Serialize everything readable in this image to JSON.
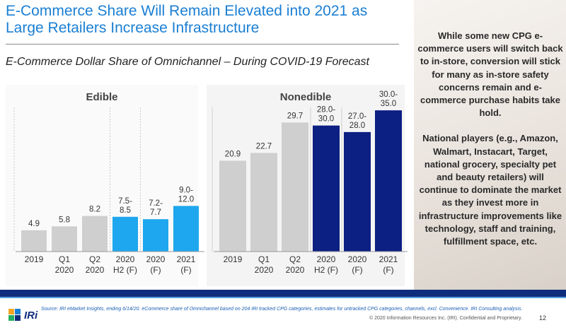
{
  "title": "E-Commerce Share Will Remain Elevated into 2021 as Large Retailers Increase Infrastructure",
  "subtitle": "E-Commerce Dollar Share of Omnichannel – During COVID-19 Forecast",
  "right_panel": {
    "paragraph1": "While some new CPG e-commerce users will switch back to in-store, conversion will stick for many as in-store safety concerns remain and e-commerce purchase habits take hold.",
    "paragraph2": "National players (e.g., Amazon, Walmart, Instacart, Target, national grocery, specialty pet and beauty retailers) will continue to dominate the market as they invest more in infrastructure improvements like technology, staff and training, fulfillment space, etc."
  },
  "footer": {
    "source": "Source: IRI eMarket Insights, ending 6/14/20. eCommerce share of Omnichannel based on 204 IRI tracked CPG categories, estimates for untracked CPG categories, channels, excl. Convenience. IRI Consulting analysis.",
    "copyright": "© 2020 Information Resources Inc. (IRI). Confidential and Proprietary.",
    "page": "12",
    "logo": "IRi"
  },
  "colors": {
    "gray": "#cfcfcf",
    "light_blue": "#1ea7ee",
    "dark_blue": "#0c1f82"
  },
  "chart_data": [
    {
      "type": "bar",
      "title": "Edible",
      "categories": [
        "2019",
        "Q1 2020",
        "Q2 2020",
        "2020 H2 (F)",
        "2020 (F)",
        "2021 (F)"
      ],
      "category_lines": [
        [
          "2019"
        ],
        [
          "Q1",
          "2020"
        ],
        [
          "Q2",
          "2020"
        ],
        [
          "2020",
          "H2 (F)"
        ],
        [
          "2020",
          "(F)"
        ],
        [
          "2021",
          "(F)"
        ]
      ],
      "values": [
        4.9,
        5.8,
        8.2,
        8.0,
        7.45,
        10.5
      ],
      "labels": [
        [
          "4.9"
        ],
        [
          "5.8"
        ],
        [
          "8.2"
        ],
        [
          "7.5-",
          "8.5"
        ],
        [
          "7.2-",
          "7.7"
        ],
        [
          "9.0-",
          "12.0"
        ]
      ],
      "colors": [
        "gray",
        "gray",
        "gray",
        "light_blue",
        "light_blue",
        "light_blue"
      ],
      "ylim": [
        0,
        40
      ]
    },
    {
      "type": "bar",
      "title": "Nonedible",
      "categories": [
        "2019",
        "Q1 2020",
        "Q2 2020",
        "2020 H2 (F)",
        "2020 (F)",
        "2021 (F)"
      ],
      "category_lines": [
        [
          "2019"
        ],
        [
          "Q1",
          "2020"
        ],
        [
          "Q2",
          "2020"
        ],
        [
          "2020",
          "H2 (F)"
        ],
        [
          "2020",
          "(F)"
        ],
        [
          "2021",
          "(F)"
        ]
      ],
      "values": [
        20.9,
        22.7,
        29.7,
        29.0,
        27.5,
        32.5
      ],
      "labels": [
        [
          "20.9"
        ],
        [
          "22.7"
        ],
        [
          "29.7"
        ],
        [
          "28.0-",
          "30.0"
        ],
        [
          "27.0-",
          "28.0"
        ],
        [
          "30.0-",
          "35.0"
        ]
      ],
      "colors": [
        "gray",
        "gray",
        "gray",
        "dark_blue",
        "dark_blue",
        "dark_blue"
      ],
      "ylim": [
        0,
        40
      ]
    }
  ]
}
